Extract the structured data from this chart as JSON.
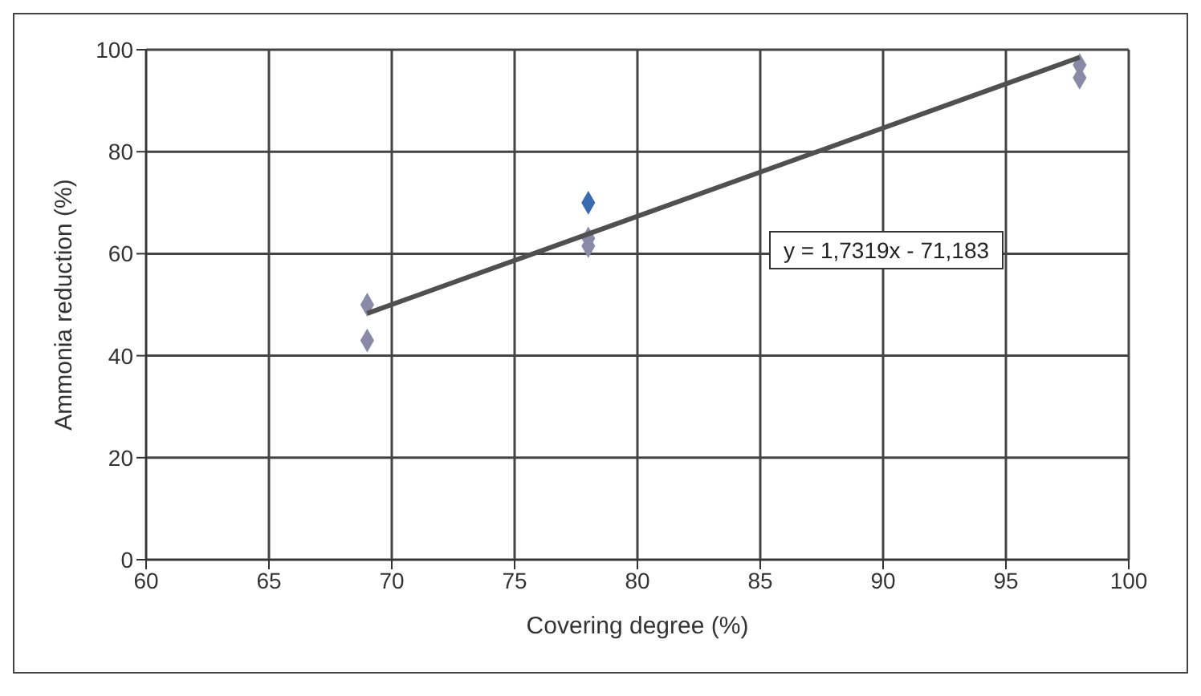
{
  "chart_data": {
    "type": "scatter",
    "xlabel": "Covering degree (%)",
    "ylabel": "Ammonia reduction (%)",
    "xlim": [
      60,
      100
    ],
    "xticks": [
      60,
      65,
      70,
      75,
      80,
      85,
      90,
      95,
      100
    ],
    "ylim": [
      0,
      100
    ],
    "yticks": [
      0,
      20,
      40,
      60,
      80,
      100
    ],
    "grid": true,
    "marker": "diamond",
    "series": [
      {
        "x": [
          69,
          69,
          78,
          78,
          78,
          98,
          98
        ],
        "values": [
          50,
          43,
          70,
          63,
          61.5,
          97,
          94.5
        ],
        "colors": [
          "#8a8aa8",
          "#8a8aa8",
          "#3a6ab0",
          "#8a8aa8",
          "#8a8aa8",
          "#8a8aa8",
          "#8a8aa8"
        ]
      },
      {
        "type": "line",
        "x": [
          69,
          98
        ],
        "values": [
          48.3,
          98.5
        ],
        "color": "#505050",
        "marker": "none"
      }
    ],
    "annotations": [
      "y = 1,7319x - 71,183"
    ]
  }
}
